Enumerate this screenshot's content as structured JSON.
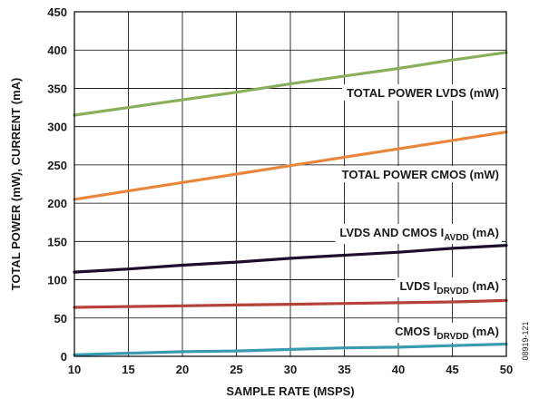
{
  "chart_data": {
    "type": "line",
    "xlabel": "SAMPLE RATE (MSPS)",
    "ylabel": "TOTAL POWER (mW), CURRENT (mA)",
    "xlim": [
      10,
      50
    ],
    "ylim": [
      0,
      450
    ],
    "x_ticks": [
      10,
      15,
      20,
      25,
      30,
      35,
      40,
      45,
      50
    ],
    "y_ticks": [
      0,
      50,
      100,
      150,
      200,
      250,
      300,
      350,
      400,
      450
    ],
    "grid": true,
    "figure_id": "08919-121",
    "series": [
      {
        "label_main": "TOTAL POWER LVDS (mW)",
        "label_sub": "",
        "label_tail": "",
        "color": "#8cad5a",
        "x": [
          10,
          15,
          20,
          25,
          30,
          35,
          40,
          45,
          50
        ],
        "y": [
          315,
          325,
          335,
          345,
          356,
          366,
          376,
          387,
          397
        ]
      },
      {
        "label_main": "TOTAL POWER CMOS (mW)",
        "label_sub": "",
        "label_tail": "",
        "color": "#e8873c",
        "x": [
          10,
          15,
          20,
          25,
          30,
          35,
          40,
          45,
          50
        ],
        "y": [
          205,
          216,
          227,
          238,
          249,
          260,
          271,
          282,
          293
        ]
      },
      {
        "label_main": "LVDS AND CMOS I",
        "label_sub": "AVDD",
        "label_tail": " (mA)",
        "color": "#1f0d2e",
        "x": [
          10,
          15,
          20,
          25,
          30,
          35,
          40,
          45,
          50
        ],
        "y": [
          110,
          114,
          119,
          123,
          128,
          132,
          136,
          141,
          145
        ]
      },
      {
        "label_main": "LVDS I",
        "label_sub": "DRVDD",
        "label_tail": " (mA)",
        "color": "#b5423a",
        "x": [
          10,
          15,
          20,
          25,
          30,
          35,
          40,
          45,
          50
        ],
        "y": [
          64,
          65,
          66,
          67,
          68,
          69,
          70,
          71,
          73
        ]
      },
      {
        "label_main": "CMOS I",
        "label_sub": "DRVDD",
        "label_tail": " (mA)",
        "color": "#3a9bb0",
        "x": [
          10,
          15,
          20,
          25,
          30,
          35,
          40,
          45,
          50
        ],
        "y": [
          2,
          4,
          6,
          7,
          9,
          11,
          12,
          14,
          16
        ]
      }
    ]
  }
}
